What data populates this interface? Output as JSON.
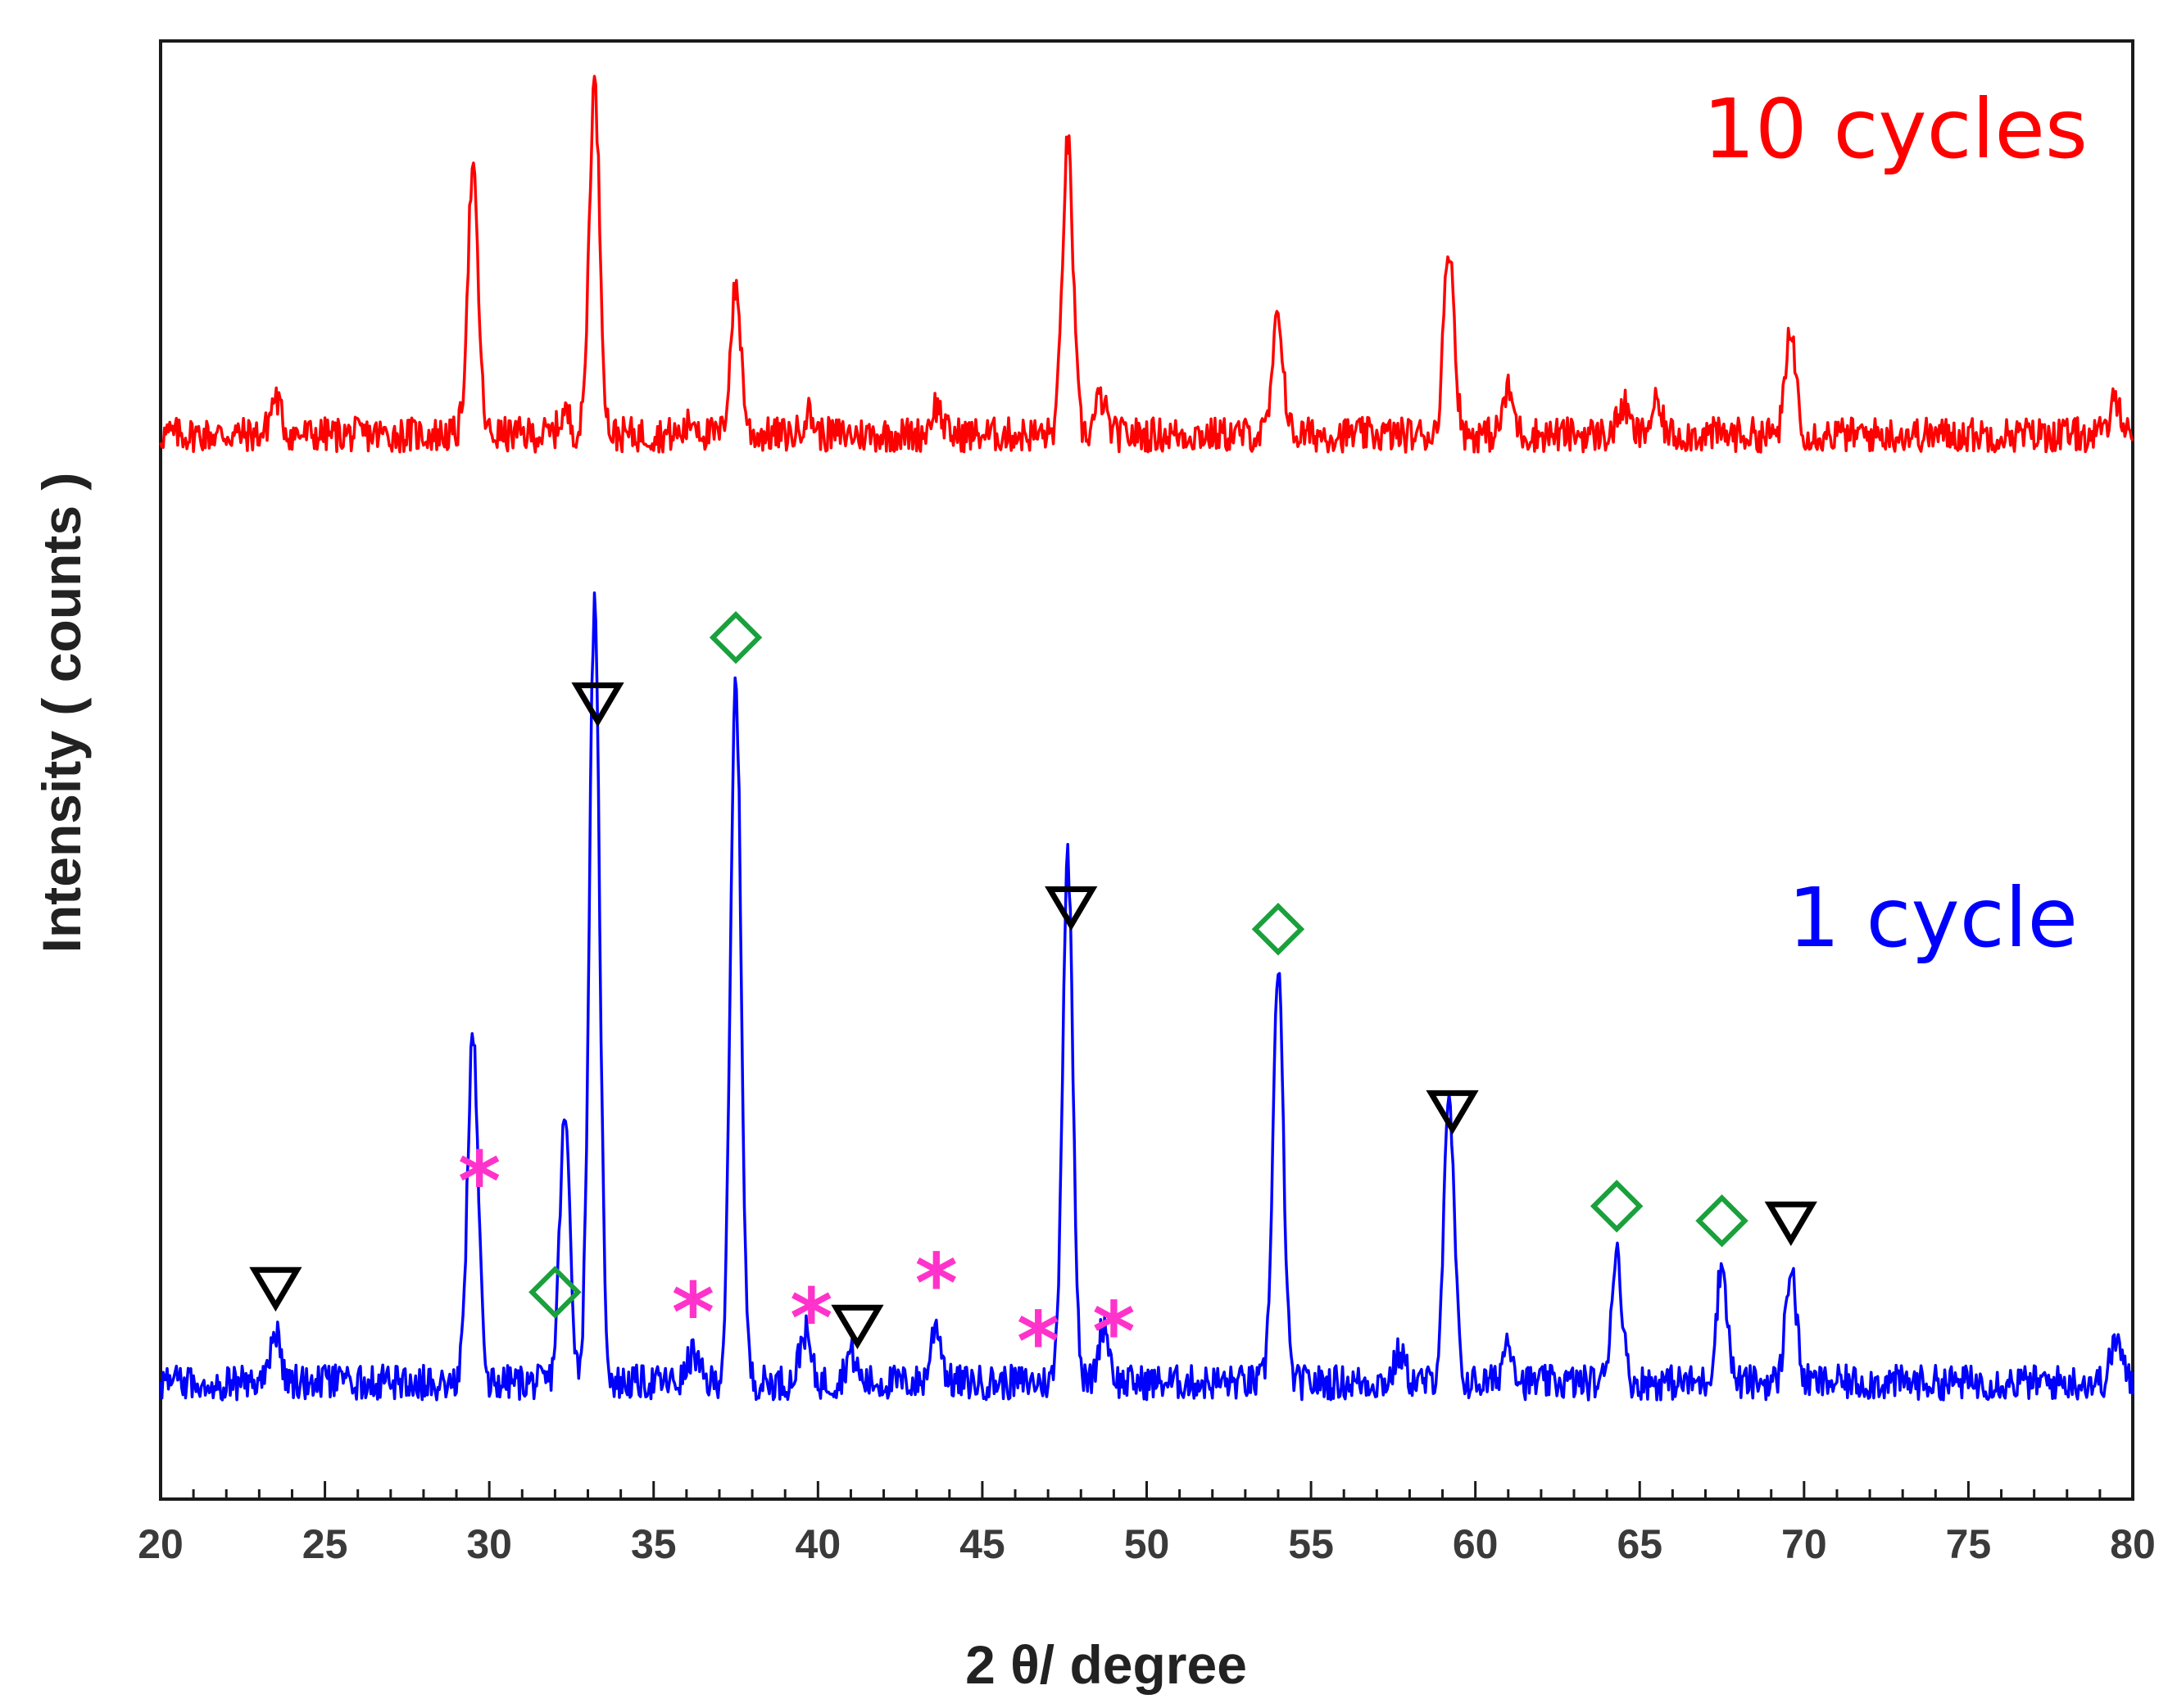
{
  "chart_data": {
    "type": "line",
    "title": "",
    "xlabel": "2 θ/ degree",
    "ylabel": "Intensity ( counts )",
    "xlim": [
      20,
      80
    ],
    "ylim": [
      0,
      100
    ],
    "xticks": [
      "20",
      "25",
      "30",
      "35",
      "40",
      "45",
      "50",
      "55",
      "60",
      "65",
      "70",
      "75",
      "80"
    ],
    "legend": "inline labels at right",
    "grid": false,
    "series": [
      {
        "name": "10 cycles",
        "color": "#ff0000",
        "baseline": 73,
        "peaks": [
          [
            23.5,
            2.5
          ],
          [
            29.5,
            18
          ],
          [
            32.3,
            1.5
          ],
          [
            33.2,
            24
          ],
          [
            36.2,
            1
          ],
          [
            37.5,
            10
          ],
          [
            39.7,
            1.5
          ],
          [
            43.6,
            2
          ],
          [
            47.6,
            20
          ],
          [
            48.6,
            2.5
          ],
          [
            54.0,
            8
          ],
          [
            59.2,
            13
          ],
          [
            61.0,
            3
          ],
          [
            64.5,
            2
          ],
          [
            65.5,
            2
          ],
          [
            69.6,
            7
          ],
          [
            79.5,
            2.5
          ]
        ]
      },
      {
        "name": "1 cycle",
        "color": "#0000ff",
        "baseline": 8,
        "peaks": [
          [
            23.5,
            3.5
          ],
          [
            29.5,
            24
          ],
          [
            32.3,
            18
          ],
          [
            33.2,
            53
          ],
          [
            36.2,
            2
          ],
          [
            37.5,
            48
          ],
          [
            39.6,
            3.5
          ],
          [
            41.0,
            2
          ],
          [
            43.6,
            4
          ],
          [
            47.6,
            36
          ],
          [
            48.7,
            4
          ],
          [
            54.0,
            28
          ],
          [
            57.7,
            2
          ],
          [
            59.2,
            19
          ],
          [
            61.0,
            3
          ],
          [
            64.3,
            9
          ],
          [
            67.5,
            8
          ],
          [
            69.6,
            8
          ],
          [
            79.5,
            3
          ]
        ]
      }
    ],
    "annotations": [
      {
        "symbol": "▽",
        "name": "triangle",
        "color": "#000000",
        "x": [
          23.5,
          33.3,
          41.2,
          47.7,
          59.3,
          69.6
        ]
      },
      {
        "symbol": "◇",
        "name": "diamond",
        "color": "#1aa03c",
        "x": [
          32.0,
          37.5,
          54.0,
          64.3,
          67.5
        ]
      },
      {
        "symbol": "*",
        "name": "asterisk",
        "color": "#ff33cc",
        "x": [
          29.7,
          36.2,
          39.8,
          43.6,
          46.7,
          49.0
        ]
      }
    ]
  }
}
